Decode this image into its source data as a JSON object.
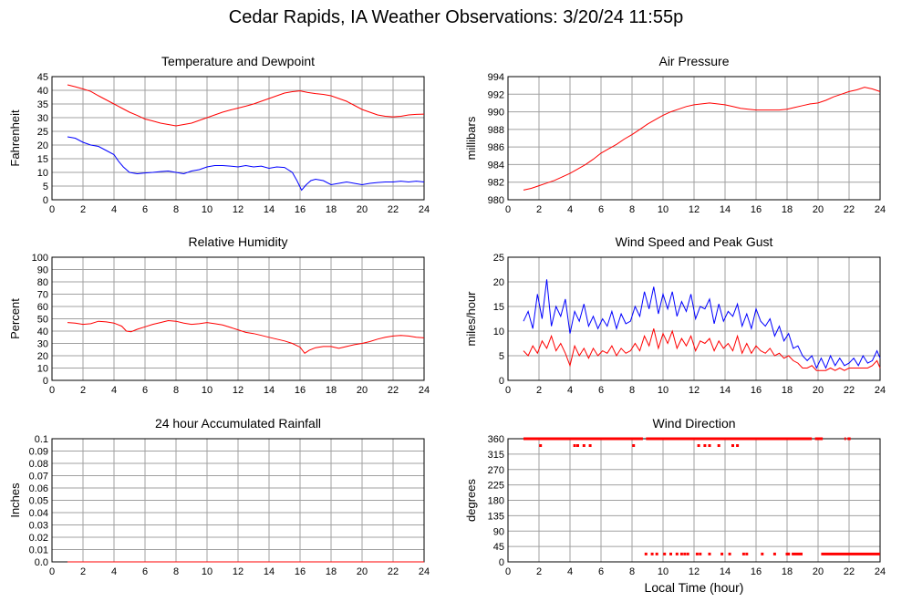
{
  "title": "Cedar Rapids, IA Weather Observations: 3/20/24 11:55p",
  "xlabel": "Local Time (hour)",
  "colors": {
    "red": "#ff0000",
    "blue": "#0000ff",
    "grid": "#a0a0a0"
  },
  "chart_data": [
    {
      "id": "temp",
      "type": "line",
      "title": "Temperature and Dewpoint",
      "ylabel": "Fahrenheit",
      "xlim": [
        0,
        24
      ],
      "ylim": [
        0,
        45
      ],
      "xticks": [
        0,
        2,
        4,
        6,
        8,
        10,
        12,
        14,
        16,
        18,
        20,
        22,
        24
      ],
      "yticks": [
        0,
        5,
        10,
        15,
        20,
        25,
        30,
        35,
        40,
        45
      ],
      "grid": true,
      "series": [
        {
          "color": "#ff0000",
          "x": [
            1.0,
            1.5,
            2.0,
            2.5,
            3.0,
            3.5,
            4.0,
            4.5,
            5.0,
            5.5,
            6.0,
            6.5,
            7.0,
            7.5,
            8.0,
            8.5,
            9.0,
            9.5,
            10.0,
            10.5,
            11.0,
            11.5,
            12.0,
            12.5,
            13.0,
            13.5,
            14.0,
            14.5,
            15.0,
            15.5,
            16.0,
            16.5,
            17.0,
            17.5,
            18.0,
            18.5,
            19.0,
            19.5,
            20.0,
            20.5,
            21.0,
            21.5,
            22.0,
            22.5,
            23.0,
            23.5,
            24.0
          ],
          "y": [
            42.0,
            41.3,
            40.5,
            39.6,
            38.0,
            36.5,
            35.0,
            33.5,
            32.0,
            30.8,
            29.5,
            28.8,
            28.0,
            27.5,
            27.0,
            27.5,
            28.0,
            29.0,
            30.0,
            31.0,
            32.0,
            32.8,
            33.5,
            34.2,
            35.0,
            36.0,
            37.0,
            38.0,
            39.0,
            39.5,
            39.8,
            39.2,
            38.8,
            38.5,
            38.0,
            37.0,
            36.0,
            34.5,
            33.0,
            32.0,
            31.0,
            30.5,
            30.3,
            30.5,
            31.0,
            31.2,
            31.3
          ]
        },
        {
          "color": "#0000ff",
          "x": [
            1.0,
            1.5,
            2.0,
            2.5,
            3.0,
            3.5,
            4.0,
            4.3,
            4.6,
            5.0,
            5.5,
            6.0,
            6.5,
            7.0,
            7.5,
            8.0,
            8.5,
            9.0,
            9.5,
            10.0,
            10.5,
            11.0,
            11.5,
            12.0,
            12.5,
            13.0,
            13.5,
            14.0,
            14.5,
            15.0,
            15.5,
            15.8,
            16.1,
            16.4,
            16.7,
            17.0,
            17.5,
            18.0,
            18.5,
            19.0,
            19.5,
            20.0,
            20.5,
            21.0,
            21.5,
            22.0,
            22.5,
            23.0,
            23.5,
            24.0
          ],
          "y": [
            23.0,
            22.5,
            21.0,
            20.0,
            19.5,
            18.0,
            16.5,
            14.0,
            12.0,
            10.0,
            9.5,
            9.8,
            10.0,
            10.3,
            10.5,
            10.0,
            9.5,
            10.5,
            11.0,
            12.0,
            12.5,
            12.5,
            12.3,
            12.0,
            12.5,
            12.0,
            12.3,
            11.5,
            12.0,
            11.8,
            10.0,
            7.0,
            3.5,
            5.5,
            7.0,
            7.5,
            7.0,
            5.5,
            6.0,
            6.5,
            6.0,
            5.5,
            6.0,
            6.3,
            6.5,
            6.5,
            6.8,
            6.5,
            6.8,
            6.5
          ]
        }
      ]
    },
    {
      "id": "pressure",
      "type": "line",
      "title": "Air Pressure",
      "ylabel": "millibars",
      "xlim": [
        0,
        24
      ],
      "ylim": [
        980,
        994
      ],
      "xticks": [
        0,
        2,
        4,
        6,
        8,
        10,
        12,
        14,
        16,
        18,
        20,
        22,
        24
      ],
      "yticks": [
        980,
        982,
        984,
        986,
        988,
        990,
        992,
        994
      ],
      "grid": true,
      "series": [
        {
          "color": "#ff0000",
          "x": [
            1.0,
            1.5,
            2.0,
            2.5,
            3.0,
            3.5,
            4.0,
            4.5,
            5.0,
            5.5,
            6.0,
            6.5,
            7.0,
            7.5,
            8.0,
            8.5,
            9.0,
            9.5,
            10.0,
            10.5,
            11.0,
            11.5,
            12.0,
            12.5,
            13.0,
            13.5,
            14.0,
            14.5,
            15.0,
            15.5,
            16.0,
            16.5,
            17.0,
            17.5,
            18.0,
            18.5,
            19.0,
            19.5,
            20.0,
            20.5,
            21.0,
            21.5,
            22.0,
            22.5,
            23.0,
            23.5,
            24.0
          ],
          "y": [
            981.1,
            981.3,
            981.6,
            981.9,
            982.2,
            982.6,
            983.0,
            983.5,
            984.0,
            984.6,
            985.3,
            985.8,
            986.3,
            986.9,
            987.4,
            988.0,
            988.6,
            989.1,
            989.6,
            990.0,
            990.3,
            990.6,
            990.8,
            990.9,
            991.0,
            990.9,
            990.8,
            990.6,
            990.4,
            990.3,
            990.2,
            990.2,
            990.2,
            990.2,
            990.3,
            990.5,
            990.7,
            990.9,
            991.0,
            991.3,
            991.7,
            992.0,
            992.3,
            992.5,
            992.8,
            992.6,
            992.3
          ]
        }
      ]
    },
    {
      "id": "rh",
      "type": "line",
      "title": "Relative Humidity",
      "ylabel": "Percent",
      "xlim": [
        0,
        24
      ],
      "ylim": [
        0,
        100
      ],
      "xticks": [
        0,
        2,
        4,
        6,
        8,
        10,
        12,
        14,
        16,
        18,
        20,
        22,
        24
      ],
      "yticks": [
        0,
        10,
        20,
        30,
        40,
        50,
        60,
        70,
        80,
        90,
        100
      ],
      "grid": true,
      "series": [
        {
          "color": "#ff0000",
          "x": [
            1.0,
            1.5,
            2.0,
            2.5,
            3.0,
            3.5,
            4.0,
            4.5,
            4.8,
            5.1,
            5.5,
            6.0,
            6.5,
            7.0,
            7.5,
            8.0,
            8.5,
            9.0,
            9.5,
            10.0,
            10.5,
            11.0,
            11.5,
            12.0,
            12.5,
            13.0,
            13.5,
            14.0,
            14.5,
            15.0,
            15.5,
            16.0,
            16.3,
            16.6,
            17.0,
            17.5,
            18.0,
            18.5,
            19.0,
            19.5,
            20.0,
            20.5,
            21.0,
            21.5,
            22.0,
            22.5,
            23.0,
            23.5,
            24.0
          ],
          "y": [
            47.0,
            46.5,
            45.5,
            46.0,
            48.0,
            47.5,
            46.5,
            44.0,
            40.0,
            39.5,
            41.5,
            43.5,
            45.5,
            47.0,
            48.5,
            48.0,
            46.5,
            45.5,
            46.0,
            47.0,
            46.0,
            45.0,
            43.0,
            41.0,
            39.0,
            38.0,
            36.5,
            35.0,
            33.5,
            32.0,
            30.0,
            27.0,
            22.0,
            24.5,
            26.5,
            27.5,
            27.5,
            26.0,
            27.5,
            29.0,
            30.0,
            31.5,
            33.5,
            35.0,
            36.0,
            36.5,
            36.0,
            35.0,
            34.5
          ]
        }
      ]
    },
    {
      "id": "wind",
      "type": "line",
      "title": "Wind Speed and Peak Gust",
      "ylabel": "miles/hour",
      "xlim": [
        0,
        24
      ],
      "ylim": [
        0,
        25
      ],
      "xticks": [
        0,
        2,
        4,
        6,
        8,
        10,
        12,
        14,
        16,
        18,
        20,
        22,
        24
      ],
      "yticks": [
        0,
        5,
        10,
        15,
        20,
        25
      ],
      "grid": true,
      "series": [
        {
          "color": "#0000ff",
          "x": [
            1.0,
            1.3,
            1.6,
            1.9,
            2.2,
            2.5,
            2.8,
            3.1,
            3.4,
            3.7,
            4.0,
            4.3,
            4.6,
            4.9,
            5.2,
            5.5,
            5.8,
            6.1,
            6.4,
            6.7,
            7.0,
            7.3,
            7.6,
            7.9,
            8.2,
            8.5,
            8.8,
            9.1,
            9.4,
            9.7,
            10.0,
            10.3,
            10.6,
            10.9,
            11.2,
            11.5,
            11.8,
            12.1,
            12.4,
            12.7,
            13.0,
            13.3,
            13.6,
            13.9,
            14.2,
            14.5,
            14.8,
            15.1,
            15.4,
            15.7,
            16.0,
            16.3,
            16.6,
            16.9,
            17.2,
            17.5,
            17.8,
            18.1,
            18.4,
            18.7,
            19.0,
            19.3,
            19.6,
            19.9,
            20.2,
            20.5,
            20.8,
            21.1,
            21.4,
            21.7,
            22.0,
            22.3,
            22.6,
            22.9,
            23.2,
            23.5,
            23.8,
            24.0
          ],
          "y": [
            12.0,
            14.0,
            10.5,
            17.5,
            12.5,
            20.5,
            11.0,
            15.0,
            13.0,
            16.5,
            9.5,
            14.0,
            12.0,
            15.5,
            11.0,
            13.0,
            10.5,
            12.5,
            11.0,
            14.0,
            10.5,
            13.5,
            11.5,
            12.0,
            15.0,
            13.0,
            18.0,
            14.5,
            19.0,
            13.5,
            17.5,
            14.5,
            18.0,
            13.0,
            16.0,
            14.0,
            17.5,
            12.5,
            15.0,
            14.5,
            16.5,
            11.5,
            15.5,
            12.0,
            14.0,
            13.0,
            15.5,
            11.0,
            13.5,
            10.5,
            14.5,
            12.0,
            11.0,
            12.5,
            9.0,
            11.0,
            8.0,
            9.5,
            6.5,
            7.0,
            5.0,
            4.0,
            5.0,
            2.5,
            4.5,
            2.5,
            5.0,
            3.0,
            4.5,
            3.0,
            3.5,
            4.5,
            3.0,
            5.0,
            3.5,
            4.0,
            6.0,
            4.5
          ]
        },
        {
          "color": "#ff0000",
          "x": [
            1.0,
            1.3,
            1.6,
            1.9,
            2.2,
            2.5,
            2.8,
            3.1,
            3.4,
            3.7,
            4.0,
            4.3,
            4.6,
            4.9,
            5.2,
            5.5,
            5.8,
            6.1,
            6.4,
            6.7,
            7.0,
            7.3,
            7.6,
            7.9,
            8.2,
            8.5,
            8.8,
            9.1,
            9.4,
            9.7,
            10.0,
            10.3,
            10.6,
            10.9,
            11.2,
            11.5,
            11.8,
            12.1,
            12.4,
            12.7,
            13.0,
            13.3,
            13.6,
            13.9,
            14.2,
            14.5,
            14.8,
            15.1,
            15.4,
            15.7,
            16.0,
            16.3,
            16.6,
            16.9,
            17.2,
            17.5,
            17.8,
            18.1,
            18.4,
            18.7,
            19.0,
            19.3,
            19.6,
            19.9,
            20.2,
            20.5,
            20.8,
            21.1,
            21.4,
            21.7,
            22.0,
            22.3,
            22.6,
            22.9,
            23.2,
            23.5,
            23.8,
            24.0
          ],
          "y": [
            6.0,
            5.0,
            7.0,
            5.5,
            8.0,
            6.5,
            9.0,
            6.0,
            7.5,
            5.5,
            3.0,
            7.0,
            5.0,
            6.5,
            4.5,
            6.5,
            5.0,
            6.0,
            5.5,
            7.0,
            5.0,
            6.5,
            5.5,
            6.0,
            7.5,
            6.0,
            9.0,
            7.0,
            10.5,
            6.5,
            9.5,
            7.5,
            10.0,
            6.5,
            8.5,
            7.0,
            9.0,
            6.0,
            8.0,
            7.5,
            8.5,
            6.0,
            8.0,
            6.5,
            7.5,
            6.0,
            9.0,
            5.5,
            7.5,
            5.5,
            7.0,
            6.0,
            5.5,
            6.5,
            5.0,
            5.5,
            4.5,
            5.0,
            4.0,
            3.5,
            2.5,
            2.5,
            3.0,
            2.0,
            2.0,
            2.0,
            2.5,
            2.0,
            2.5,
            2.0,
            2.5,
            2.5,
            2.5,
            2.5,
            2.5,
            3.0,
            4.0,
            2.5
          ]
        }
      ]
    },
    {
      "id": "rain",
      "type": "line",
      "title": "24 hour Accumulated Rainfall",
      "ylabel": "Inches",
      "xlim": [
        0,
        24
      ],
      "ylim": [
        0,
        0.1
      ],
      "xticks": [
        0,
        2,
        4,
        6,
        8,
        10,
        12,
        14,
        16,
        18,
        20,
        22,
        24
      ],
      "yticks": [
        "0.0",
        "0.01",
        "0.02",
        "0.03",
        "0.04",
        "0.05",
        "0.06",
        "0.07",
        "0.08",
        "0.09",
        "0.1"
      ],
      "grid": true,
      "series": [
        {
          "color": "#ff0000",
          "x": [
            1.0,
            24.0
          ],
          "y": [
            0.0,
            0.0
          ]
        }
      ]
    },
    {
      "id": "dir",
      "type": "scatter",
      "title": "Wind Direction",
      "ylabel": "degrees",
      "xlim": [
        0,
        24
      ],
      "ylim": [
        0,
        360
      ],
      "xticks": [
        0,
        2,
        4,
        6,
        8,
        10,
        12,
        14,
        16,
        18,
        20,
        22,
        24
      ],
      "yticks": [
        0,
        45,
        90,
        135,
        180,
        225,
        270,
        315,
        360
      ],
      "grid": true,
      "series": [
        {
          "color": "#ff0000",
          "segments": [
            [
              1.0,
              8.7,
              360
            ],
            [
              8.9,
              19.6,
              360
            ],
            [
              19.8,
              20.3,
              360
            ],
            [
              21.7,
              21.8,
              360
            ],
            [
              21.9,
              22.1,
              360
            ],
            [
              18.3,
              19.0,
              23
            ],
            [
              20.2,
              24.0,
              23
            ]
          ],
          "points": [
            [
              2.1,
              340
            ],
            [
              4.3,
              340
            ],
            [
              4.5,
              340
            ],
            [
              4.9,
              340
            ],
            [
              5.3,
              340
            ],
            [
              8.1,
              340
            ],
            [
              12.3,
              340
            ],
            [
              12.7,
              340
            ],
            [
              13.0,
              340
            ],
            [
              13.6,
              340
            ],
            [
              14.5,
              340
            ],
            [
              14.8,
              340
            ],
            [
              8.9,
              23
            ],
            [
              9.3,
              23
            ],
            [
              9.6,
              23
            ],
            [
              10.1,
              23
            ],
            [
              10.5,
              23
            ],
            [
              10.9,
              23
            ],
            [
              11.2,
              23
            ],
            [
              11.4,
              23
            ],
            [
              11.6,
              23
            ],
            [
              12.2,
              23
            ],
            [
              12.4,
              23
            ],
            [
              13.0,
              23
            ],
            [
              13.8,
              23
            ],
            [
              14.3,
              23
            ],
            [
              15.2,
              23
            ],
            [
              15.4,
              23
            ],
            [
              16.4,
              23
            ],
            [
              17.2,
              23
            ],
            [
              18.0,
              23
            ],
            [
              18.1,
              23
            ]
          ]
        }
      ]
    }
  ]
}
